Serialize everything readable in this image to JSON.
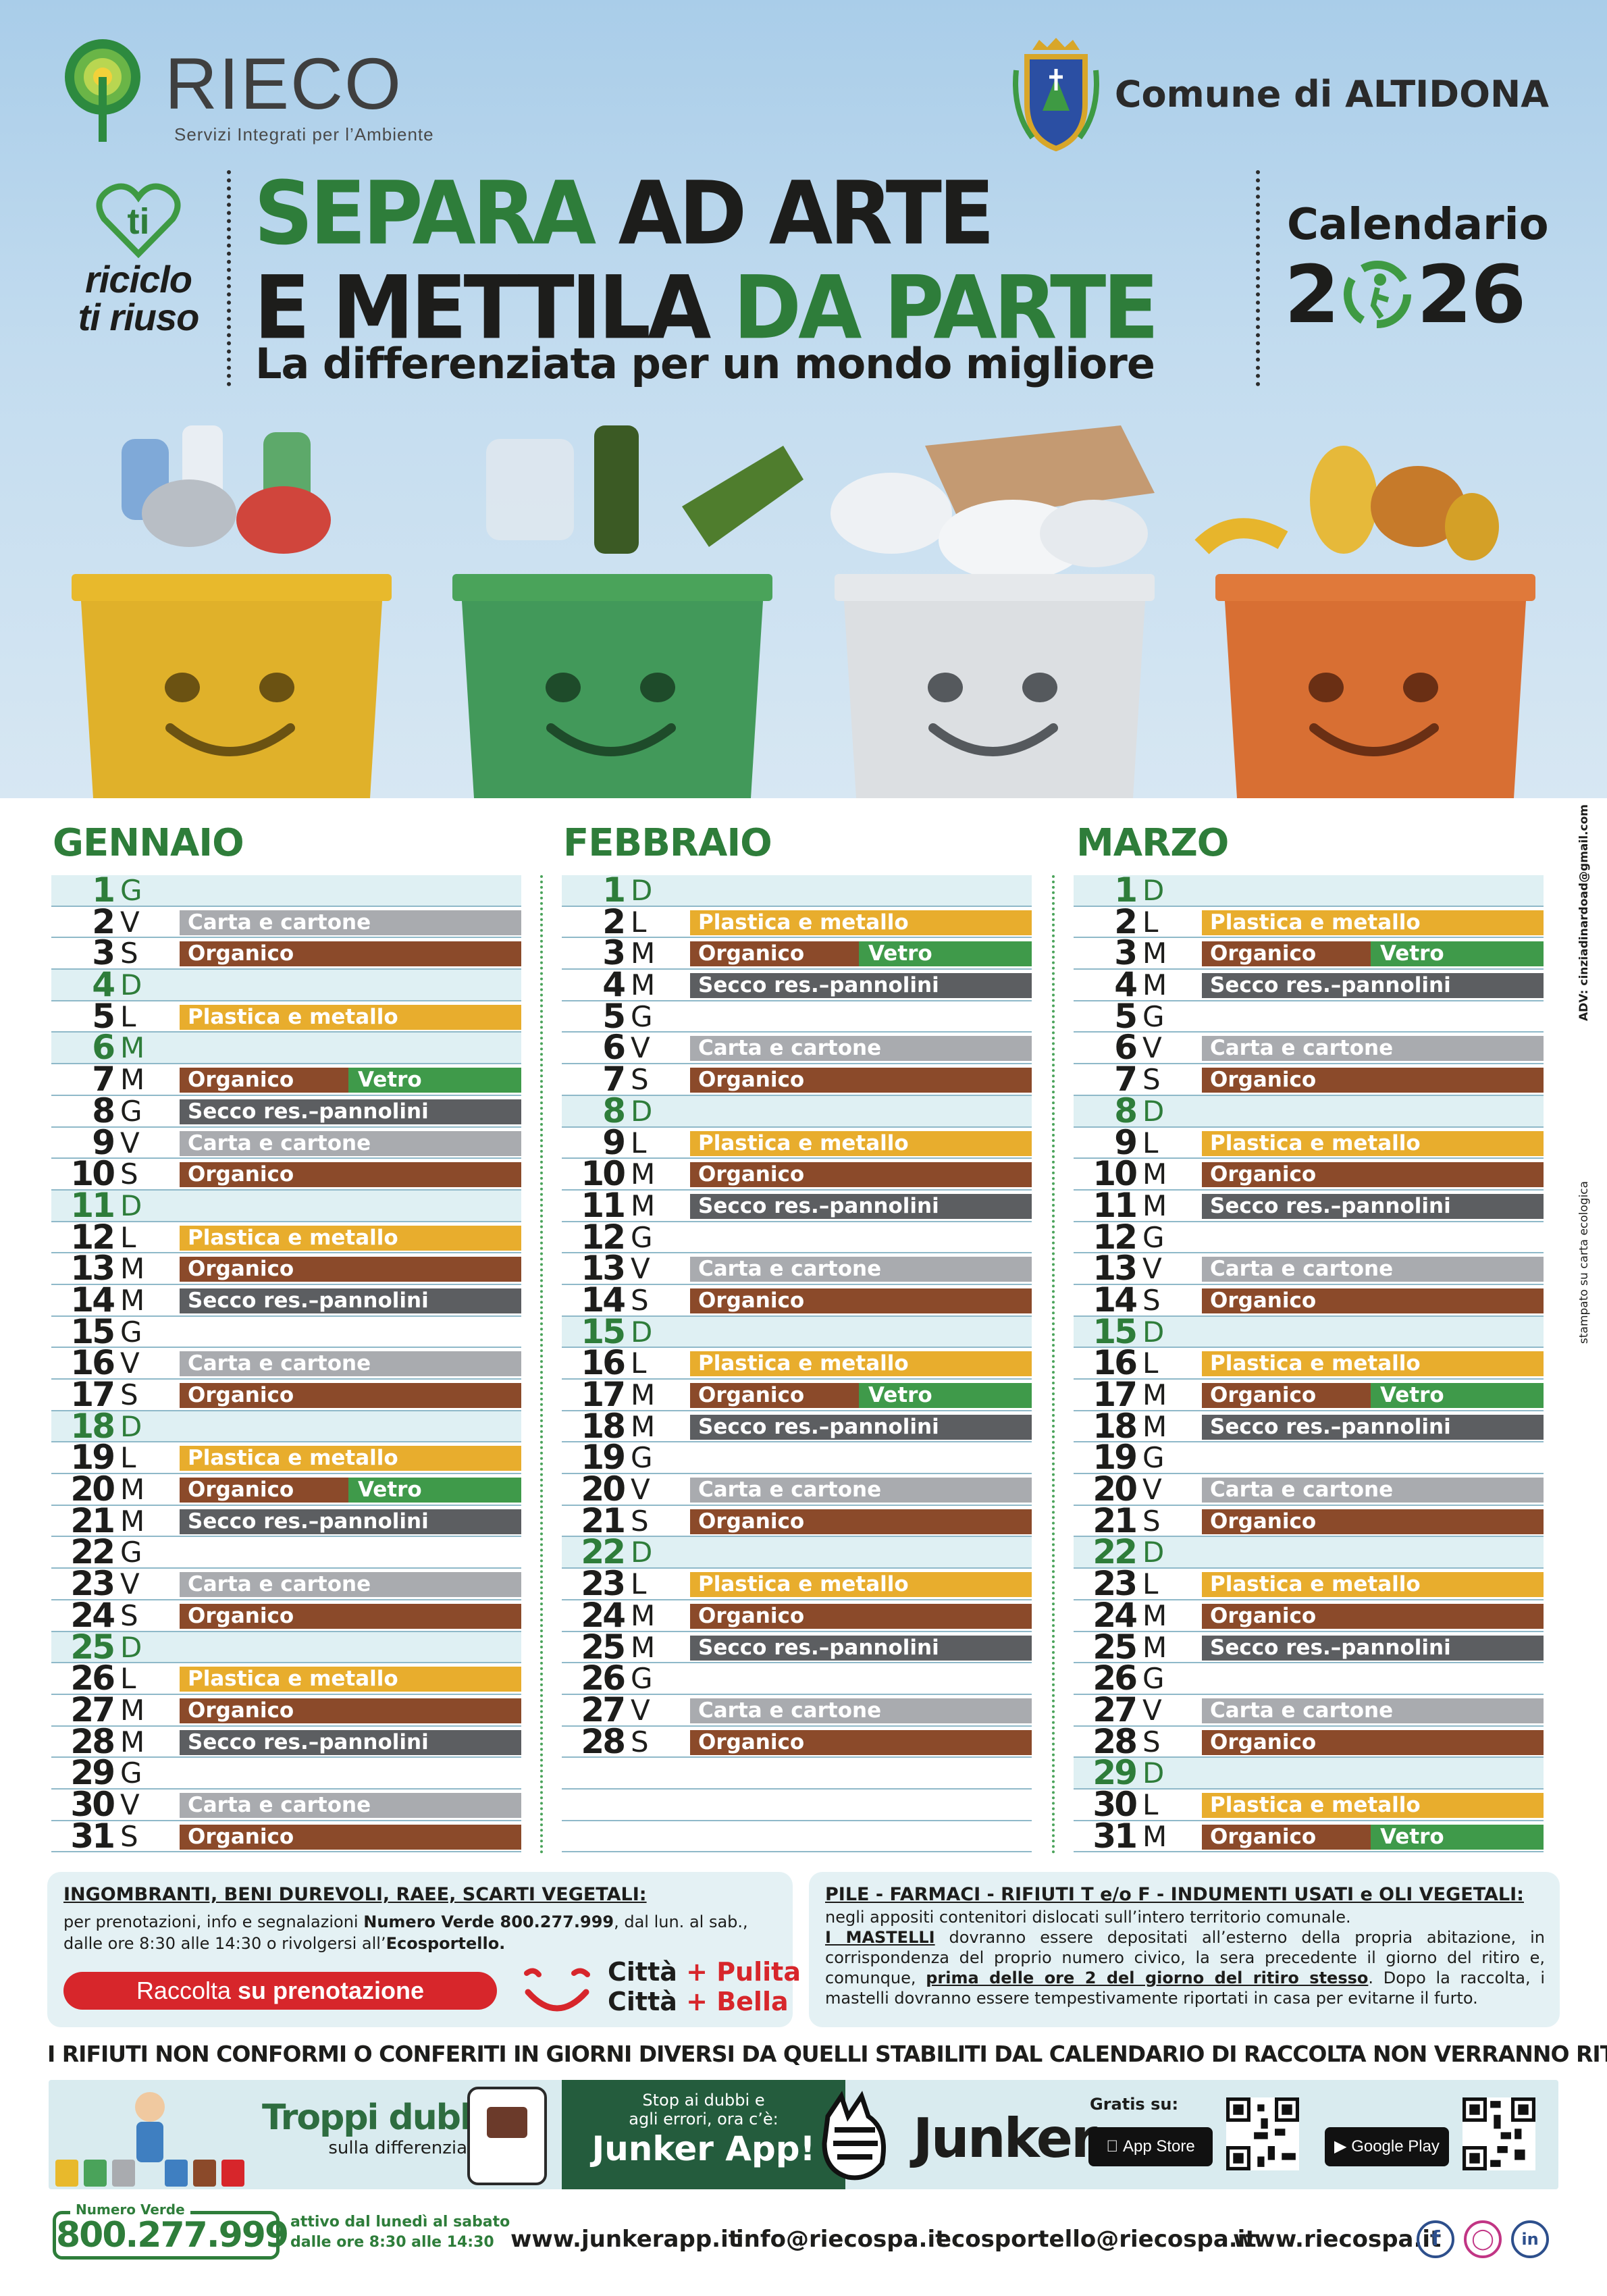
{
  "brand": {
    "name": "RIECO",
    "subtitle": "Servizi Integrati per l’Ambiente"
  },
  "comune": {
    "name": "Comune di ALTIDONA"
  },
  "badge": {
    "line1": "ti",
    "line2": "riciclo",
    "line3": "ti riuso"
  },
  "headline": {
    "line1_a": "SEPARA",
    "line1_b": " AD ARTE",
    "line2_a": "E METTILA ",
    "line2_b": "DA PARTE",
    "tagline": "La differenziata per un mondo migliore"
  },
  "calendar": {
    "word": "Calendario",
    "year_a": "2",
    "year_b": "26"
  },
  "colors": {
    "plastica": "#e8ad2d",
    "carta": "#a9abaf",
    "organico": "#8b4a2a",
    "vetro": "#3f9a4a",
    "secco": "#5c5e61",
    "green": "#2e7d3a"
  },
  "legend": {
    "plastica": "Plastica e metallo",
    "carta": "Carta e cartone",
    "organico": "Organico",
    "vetro": "Vetro",
    "secco": "Secco res.–pannolini"
  },
  "months": [
    {
      "name": "GENNAIO",
      "days": [
        {
          "d": "1",
          "w": "G",
          "sun": true,
          "w1": []
        },
        {
          "d": "2",
          "w": "V",
          "w1": [
            "carta"
          ]
        },
        {
          "d": "3",
          "w": "S",
          "w1": [
            "organico"
          ]
        },
        {
          "d": "4",
          "w": "D",
          "sun": true,
          "w1": []
        },
        {
          "d": "5",
          "w": "L",
          "w1": [
            "plastica"
          ]
        },
        {
          "d": "6",
          "w": "M",
          "sun": true,
          "w1": []
        },
        {
          "d": "7",
          "w": "M",
          "w1": [
            "organico",
            "vetro"
          ]
        },
        {
          "d": "8",
          "w": "G",
          "w1": [
            "secco"
          ]
        },
        {
          "d": "9",
          "w": "V",
          "w1": [
            "carta"
          ]
        },
        {
          "d": "10",
          "w": "S",
          "w1": [
            "organico"
          ]
        },
        {
          "d": "11",
          "w": "D",
          "sun": true,
          "w1": []
        },
        {
          "d": "12",
          "w": "L",
          "w1": [
            "plastica"
          ]
        },
        {
          "d": "13",
          "w": "M",
          "w1": [
            "organico"
          ]
        },
        {
          "d": "14",
          "w": "M",
          "w1": [
            "secco"
          ]
        },
        {
          "d": "15",
          "w": "G",
          "w1": []
        },
        {
          "d": "16",
          "w": "V",
          "w1": [
            "carta"
          ]
        },
        {
          "d": "17",
          "w": "S",
          "w1": [
            "organico"
          ]
        },
        {
          "d": "18",
          "w": "D",
          "sun": true,
          "w1": []
        },
        {
          "d": "19",
          "w": "L",
          "w1": [
            "plastica"
          ]
        },
        {
          "d": "20",
          "w": "M",
          "w1": [
            "organico",
            "vetro"
          ]
        },
        {
          "d": "21",
          "w": "M",
          "w1": [
            "secco"
          ]
        },
        {
          "d": "22",
          "w": "G",
          "w1": []
        },
        {
          "d": "23",
          "w": "V",
          "w1": [
            "carta"
          ]
        },
        {
          "d": "24",
          "w": "S",
          "w1": [
            "organico"
          ]
        },
        {
          "d": "25",
          "w": "D",
          "sun": true,
          "w1": []
        },
        {
          "d": "26",
          "w": "L",
          "w1": [
            "plastica"
          ]
        },
        {
          "d": "27",
          "w": "M",
          "w1": [
            "organico"
          ]
        },
        {
          "d": "28",
          "w": "M",
          "w1": [
            "secco"
          ]
        },
        {
          "d": "29",
          "w": "G",
          "w1": []
        },
        {
          "d": "30",
          "w": "V",
          "w1": [
            "carta"
          ]
        },
        {
          "d": "31",
          "w": "S",
          "w1": [
            "organico"
          ]
        }
      ]
    },
    {
      "name": "FEBBRAIO",
      "days": [
        {
          "d": "1",
          "w": "D",
          "sun": true,
          "w1": []
        },
        {
          "d": "2",
          "w": "L",
          "w1": [
            "plastica"
          ]
        },
        {
          "d": "3",
          "w": "M",
          "w1": [
            "organico",
            "vetro"
          ]
        },
        {
          "d": "4",
          "w": "M",
          "w1": [
            "secco"
          ]
        },
        {
          "d": "5",
          "w": "G",
          "w1": []
        },
        {
          "d": "6",
          "w": "V",
          "w1": [
            "carta"
          ]
        },
        {
          "d": "7",
          "w": "S",
          "w1": [
            "organico"
          ]
        },
        {
          "d": "8",
          "w": "D",
          "sun": true,
          "w1": []
        },
        {
          "d": "9",
          "w": "L",
          "w1": [
            "plastica"
          ]
        },
        {
          "d": "10",
          "w": "M",
          "w1": [
            "organico"
          ]
        },
        {
          "d": "11",
          "w": "M",
          "w1": [
            "secco"
          ]
        },
        {
          "d": "12",
          "w": "G",
          "w1": []
        },
        {
          "d": "13",
          "w": "V",
          "w1": [
            "carta"
          ]
        },
        {
          "d": "14",
          "w": "S",
          "w1": [
            "organico"
          ]
        },
        {
          "d": "15",
          "w": "D",
          "sun": true,
          "w1": []
        },
        {
          "d": "16",
          "w": "L",
          "w1": [
            "plastica"
          ]
        },
        {
          "d": "17",
          "w": "M",
          "w1": [
            "organico",
            "vetro"
          ]
        },
        {
          "d": "18",
          "w": "M",
          "w1": [
            "secco"
          ]
        },
        {
          "d": "19",
          "w": "G",
          "w1": []
        },
        {
          "d": "20",
          "w": "V",
          "w1": [
            "carta"
          ]
        },
        {
          "d": "21",
          "w": "S",
          "w1": [
            "organico"
          ]
        },
        {
          "d": "22",
          "w": "D",
          "sun": true,
          "w1": []
        },
        {
          "d": "23",
          "w": "L",
          "w1": [
            "plastica"
          ]
        },
        {
          "d": "24",
          "w": "M",
          "w1": [
            "organico"
          ]
        },
        {
          "d": "25",
          "w": "M",
          "w1": [
            "secco"
          ]
        },
        {
          "d": "26",
          "w": "G",
          "w1": []
        },
        {
          "d": "27",
          "w": "V",
          "w1": [
            "carta"
          ]
        },
        {
          "d": "28",
          "w": "S",
          "w1": [
            "organico"
          ]
        }
      ]
    },
    {
      "name": "MARZO",
      "days": [
        {
          "d": "1",
          "w": "D",
          "sun": true,
          "w1": []
        },
        {
          "d": "2",
          "w": "L",
          "w1": [
            "plastica"
          ]
        },
        {
          "d": "3",
          "w": "M",
          "w1": [
            "organico",
            "vetro"
          ]
        },
        {
          "d": "4",
          "w": "M",
          "w1": [
            "secco"
          ]
        },
        {
          "d": "5",
          "w": "G",
          "w1": []
        },
        {
          "d": "6",
          "w": "V",
          "w1": [
            "carta"
          ]
        },
        {
          "d": "7",
          "w": "S",
          "w1": [
            "organico"
          ]
        },
        {
          "d": "8",
          "w": "D",
          "sun": true,
          "w1": []
        },
        {
          "d": "9",
          "w": "L",
          "w1": [
            "plastica"
          ]
        },
        {
          "d": "10",
          "w": "M",
          "w1": [
            "organico"
          ]
        },
        {
          "d": "11",
          "w": "M",
          "w1": [
            "secco"
          ]
        },
        {
          "d": "12",
          "w": "G",
          "w1": []
        },
        {
          "d": "13",
          "w": "V",
          "w1": [
            "carta"
          ]
        },
        {
          "d": "14",
          "w": "S",
          "w1": [
            "organico"
          ]
        },
        {
          "d": "15",
          "w": "D",
          "sun": true,
          "w1": []
        },
        {
          "d": "16",
          "w": "L",
          "w1": [
            "plastica"
          ]
        },
        {
          "d": "17",
          "w": "M",
          "w1": [
            "organico",
            "vetro"
          ]
        },
        {
          "d": "18",
          "w": "M",
          "w1": [
            "secco"
          ]
        },
        {
          "d": "19",
          "w": "G",
          "w1": []
        },
        {
          "d": "20",
          "w": "V",
          "w1": [
            "carta"
          ]
        },
        {
          "d": "21",
          "w": "S",
          "w1": [
            "organico"
          ]
        },
        {
          "d": "22",
          "w": "D",
          "sun": true,
          "w1": []
        },
        {
          "d": "23",
          "w": "L",
          "w1": [
            "plastica"
          ]
        },
        {
          "d": "24",
          "w": "M",
          "w1": [
            "organico"
          ]
        },
        {
          "d": "25",
          "w": "M",
          "w1": [
            "secco"
          ]
        },
        {
          "d": "26",
          "w": "G",
          "w1": []
        },
        {
          "d": "27",
          "w": "V",
          "w1": [
            "carta"
          ]
        },
        {
          "d": "28",
          "w": "S",
          "w1": [
            "organico"
          ]
        },
        {
          "d": "29",
          "w": "D",
          "sun": true,
          "w1": []
        },
        {
          "d": "30",
          "w": "L",
          "w1": [
            "plastica"
          ]
        },
        {
          "d": "31",
          "w": "M",
          "w1": [
            "organico",
            "vetro"
          ]
        }
      ]
    }
  ],
  "info_left": {
    "title": "INGOMBRANTI, BENI DUREVOLI, RAEE, SCARTI VEGETALI:",
    "text_a": "per prenotazioni, info e segnalazioni ",
    "text_b": "Numero Verde 800.277.999",
    "text_c": ", dal lun. al sab.,",
    "text_d": "dalle ore 8:30 alle 14:30 o rivolgersi all’",
    "text_e": "Ecosportello.",
    "button_a": "Raccolta ",
    "button_b": "su prenotazione",
    "slogan1_a": "Città ",
    "slogan1_b": "+ Pulita",
    "slogan2_a": "Città ",
    "slogan2_b": "+ Bella"
  },
  "info_right": {
    "title": "PILE - FARMACI - RIFIUTI T e/o F - INDUMENTI USATI e OLI VEGETALI:",
    "text1": "negli appositi contenitori dislocati sull’intero territorio comunale.",
    "text2_a": "I MASTELLI",
    "text2_b": " dovranno essere depositati all’esterno della propria abitazione, in corrispondenza del proprio numero civico, la sera precedente il giorno del ritiro e, comunque, ",
    "text2_c": "prima delle ore 2 del giorno del ritiro stesso",
    "text2_d": ". Dopo la raccolta, i mastelli dovranno essere tempestivamente riportati in casa per evitarne il furto."
  },
  "warning": "I RIFIUTI NON CONFORMI O CONFERITI IN GIORNI DIVERSI DA QUELLI STABILITI DAL CALENDARIO DI RACCOLTA NON VERRANNO RITIRATI.",
  "junker": {
    "title": "Troppi dubbi",
    "subtitle": "sulla differenziata?",
    "stop_line1": "Stop ai dubbi e",
    "stop_line2": "agli errori, ora c’è:",
    "stop_app": "Junker App!",
    "brand": "Junker",
    "gratis": "Gratis su:",
    "appstore": "App Store",
    "googleplay": "Google Play"
  },
  "footer": {
    "nv_label": "Numero Verde",
    "nv_number": "800.277.999",
    "hours1": "attivo dal lunedì al sabato",
    "hours2": "dalle ore 8:30 alle 14:30",
    "link1": "www.junkerapp.it",
    "link2": "info@riecospa.it",
    "link3": "ecosportello@riecospa.it",
    "link4": "www.riecospa.it"
  },
  "side": {
    "adv_a": "ADV: ",
    "adv_b": "cinziadinardoad@gmail.com",
    "print": "stampato su carta ecologica"
  }
}
